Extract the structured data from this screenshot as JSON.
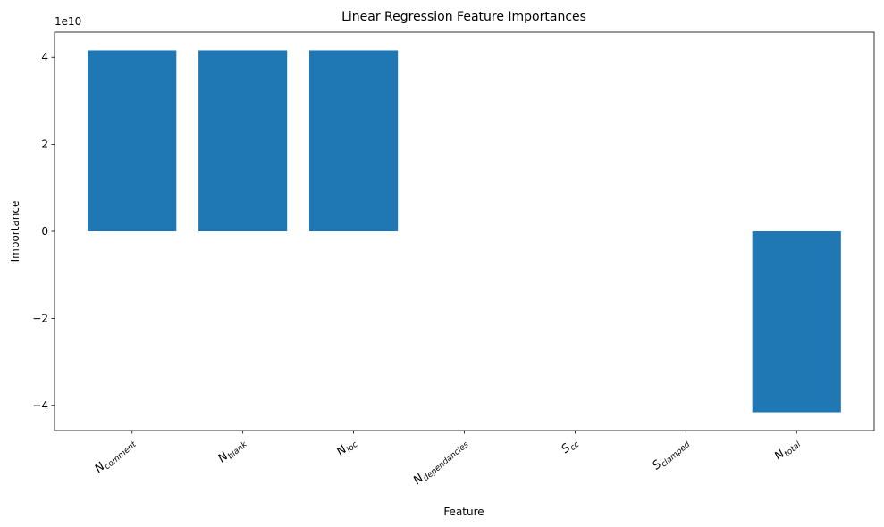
{
  "chart_data": {
    "type": "bar",
    "title": "Linear Regression Feature Importances",
    "xlabel": "Feature",
    "ylabel": "Importance",
    "y_offset_label": "1e10",
    "y_scale": 10000000000,
    "categories": [
      {
        "base": "N",
        "sub": "comment"
      },
      {
        "base": "N",
        "sub": "blank"
      },
      {
        "base": "N",
        "sub": "loc"
      },
      {
        "base": "N",
        "sub": "dependancies"
      },
      {
        "base": "S",
        "sub": "cc"
      },
      {
        "base": "S",
        "sub": "clamped"
      },
      {
        "base": "N",
        "sub": "total"
      }
    ],
    "values": [
      41600000000,
      41600000000,
      41600000000,
      0,
      0,
      0,
      -41600000000
    ],
    "ylim": [
      -45800000000,
      45800000000
    ],
    "yticks": [
      -4,
      -2,
      0,
      2,
      4
    ],
    "ytick_labels": [
      "−4",
      "−2",
      "0",
      "2",
      "4"
    ],
    "bar_color": "#1f77b4",
    "grid": false,
    "legend": "none"
  }
}
